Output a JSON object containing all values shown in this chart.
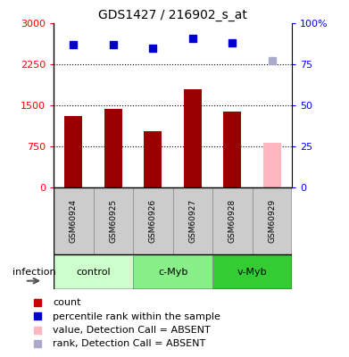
{
  "title": "GDS1427 / 216902_s_at",
  "samples": [
    "GSM60924",
    "GSM60925",
    "GSM60926",
    "GSM60927",
    "GSM60928",
    "GSM60929"
  ],
  "bar_values": [
    1300,
    1440,
    1020,
    1800,
    1380,
    820
  ],
  "bar_colors": [
    "#990000",
    "#990000",
    "#990000",
    "#990000",
    "#990000",
    "#ffb6c1"
  ],
  "rank_values": [
    87,
    87,
    85,
    91,
    88,
    77
  ],
  "rank_colors": [
    "#0000cc",
    "#0000cc",
    "#0000cc",
    "#0000cc",
    "#0000cc",
    "#aaaacc"
  ],
  "groups": [
    {
      "label": "control",
      "start": 0,
      "end": 2,
      "color": "#ccffcc"
    },
    {
      "label": "c-Myb",
      "start": 2,
      "end": 4,
      "color": "#88ee88"
    },
    {
      "label": "v-Myb",
      "start": 4,
      "end": 6,
      "color": "#33cc33"
    }
  ],
  "ylim_left": [
    0,
    3000
  ],
  "ylim_right": [
    0,
    100
  ],
  "yticks_left": [
    0,
    750,
    1500,
    2250,
    3000
  ],
  "yticks_right": [
    0,
    25,
    50,
    75,
    100
  ],
  "ytick_labels_left": [
    "0",
    "750",
    "1500",
    "2250",
    "3000"
  ],
  "ytick_labels_right": [
    "0",
    "25",
    "50",
    "75",
    "100%"
  ],
  "hlines": [
    750,
    1500,
    2250
  ],
  "infection_label": "infection",
  "legend_items": [
    {
      "color": "#cc0000",
      "marker": "s",
      "label": "count"
    },
    {
      "color": "#0000cc",
      "marker": "s",
      "label": "percentile rank within the sample"
    },
    {
      "color": "#ffb6c1",
      "marker": "s",
      "label": "value, Detection Call = ABSENT"
    },
    {
      "color": "#aaaacc",
      "marker": "s",
      "label": "rank, Detection Call = ABSENT"
    }
  ],
  "bar_width": 0.45,
  "marker_size": 6,
  "bg_color": "#ffffff",
  "label_box_color": "#cccccc",
  "label_fontsize": 6.5,
  "group_fontsize": 8,
  "title_fontsize": 10,
  "ytick_fontsize": 8,
  "legend_fontsize": 8
}
